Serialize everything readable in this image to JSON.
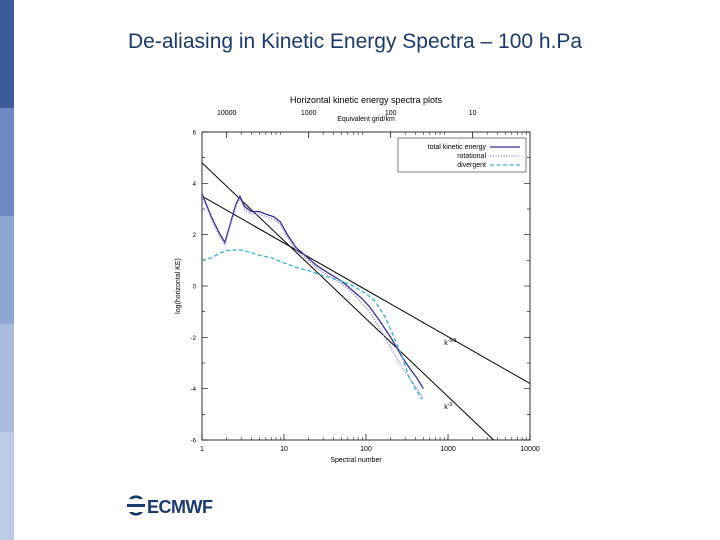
{
  "slide": {
    "title": "De-aliasing in Kinetic Energy Spectra – 100 h.Pa",
    "logo_text": "ECMWF",
    "colors": {
      "sidebar": [
        "#3d5a99",
        "#6c8ac0",
        "#8ea6d2",
        "#a8bbde",
        "#bccbe6"
      ],
      "title": "#1a3a6e"
    }
  },
  "chart_data": {
    "type": "line",
    "title": "Horizontal kinetic energy spectra plots",
    "top_axis_label": "Equivalent grid/km",
    "top_ticks": [
      {
        "label": "10000",
        "at": 2
      },
      {
        "label": "1000",
        "at": 20
      },
      {
        "label": "100",
        "at": 200
      },
      {
        "label": "10",
        "at": 2000
      }
    ],
    "xlabel": "Spectral number",
    "ylabel": "log(horizontal KE)",
    "xscale": "log",
    "xlim": [
      1,
      10000
    ],
    "ylim": [
      -6,
      6
    ],
    "x_ticks": [
      "1",
      "10",
      "100",
      "1000",
      "10000"
    ],
    "y_ticks": [
      "-6",
      "-4",
      "-2",
      "0",
      "2",
      "4",
      "6"
    ],
    "legend": {
      "position": "top-right"
    },
    "series": [
      {
        "name": "total kinetic energy",
        "color": "#3a2f9a",
        "style": "solid",
        "points": [
          [
            1,
            3.6
          ],
          [
            1.3,
            2.7
          ],
          [
            1.6,
            2.1
          ],
          [
            1.9,
            1.7
          ],
          [
            2.2,
            2.4
          ],
          [
            2.6,
            3.2
          ],
          [
            2.9,
            3.5
          ],
          [
            3.3,
            3.1
          ],
          [
            4,
            2.9
          ],
          [
            5,
            2.9
          ],
          [
            6,
            2.8
          ],
          [
            7.5,
            2.7
          ],
          [
            9,
            2.5
          ],
          [
            11,
            2.0
          ],
          [
            14,
            1.5
          ],
          [
            18,
            1.2
          ],
          [
            25,
            0.8
          ],
          [
            35,
            0.5
          ],
          [
            50,
            0.2
          ],
          [
            70,
            -0.2
          ],
          [
            90,
            -0.5
          ],
          [
            110,
            -0.8
          ],
          [
            150,
            -1.4
          ],
          [
            200,
            -2.0
          ],
          [
            280,
            -2.8
          ],
          [
            340,
            -3.2
          ],
          [
            420,
            -3.6
          ],
          [
            500,
            -4.0
          ]
        ]
      },
      {
        "name": "rotational",
        "color": "#8a8ae0",
        "style": "dotted",
        "points": [
          [
            1,
            3.5
          ],
          [
            1.3,
            2.6
          ],
          [
            1.6,
            2.0
          ],
          [
            1.9,
            1.6
          ],
          [
            2.2,
            2.3
          ],
          [
            2.6,
            3.1
          ],
          [
            2.9,
            3.4
          ],
          [
            3.3,
            3.0
          ],
          [
            4,
            2.8
          ],
          [
            5,
            2.8
          ],
          [
            6,
            2.7
          ],
          [
            7.5,
            2.6
          ],
          [
            9,
            2.4
          ],
          [
            11,
            1.9
          ],
          [
            14,
            1.4
          ],
          [
            18,
            1.1
          ],
          [
            25,
            0.7
          ],
          [
            35,
            0.4
          ],
          [
            50,
            0.1
          ],
          [
            70,
            -0.3
          ],
          [
            90,
            -0.7
          ],
          [
            110,
            -1.0
          ],
          [
            150,
            -1.7
          ],
          [
            200,
            -2.4
          ],
          [
            280,
            -3.2
          ],
          [
            340,
            -3.6
          ],
          [
            420,
            -4.0
          ],
          [
            500,
            -4.4
          ]
        ]
      },
      {
        "name": "divergent",
        "color": "#37b3d6",
        "style": "dashed",
        "points": [
          [
            1,
            1.0
          ],
          [
            1.3,
            1.1
          ],
          [
            1.7,
            1.3
          ],
          [
            2.2,
            1.4
          ],
          [
            3,
            1.4
          ],
          [
            4,
            1.3
          ],
          [
            5,
            1.2
          ],
          [
            7,
            1.1
          ],
          [
            10,
            0.9
          ],
          [
            15,
            0.7
          ],
          [
            20,
            0.6
          ],
          [
            30,
            0.4
          ],
          [
            50,
            0.2
          ],
          [
            70,
            0.0
          ],
          [
            100,
            -0.3
          ],
          [
            130,
            -0.6
          ],
          [
            170,
            -1.2
          ],
          [
            220,
            -2.0
          ],
          [
            280,
            -2.8
          ],
          [
            330,
            -3.5
          ],
          [
            400,
            -4.0
          ],
          [
            480,
            -4.4
          ]
        ]
      }
    ],
    "reference_lines": [
      {
        "label": "k-5/3",
        "base": "k",
        "exp": "-5/3",
        "from": [
          1,
          3.5
        ],
        "to": [
          10000,
          -3.8
        ],
        "label_at": [
          900,
          -2.3
        ]
      },
      {
        "label": "k-3",
        "base": "k",
        "exp": "-3",
        "from": [
          1,
          4.8
        ],
        "to": [
          3600,
          -6.0
        ],
        "label_at": [
          900,
          -4.8
        ]
      }
    ]
  }
}
